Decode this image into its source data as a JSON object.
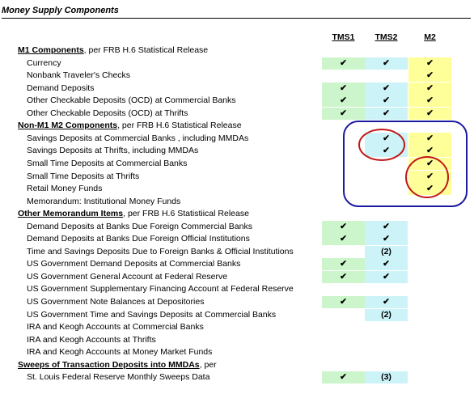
{
  "title": "Money Supply Components",
  "columns": [
    "TMS1",
    "TMS2",
    "M2"
  ],
  "rows": [
    {
      "section": "M1 Components",
      "note": ", per FRB H.6 Statistical Release"
    },
    {
      "label": "Currency",
      "cells": [
        "✔",
        "✔",
        "✔"
      ]
    },
    {
      "label": "Nonbank Traveler's Checks",
      "cells": [
        null,
        null,
        "✔"
      ]
    },
    {
      "label": "Demand Deposits",
      "cells": [
        "✔",
        "✔",
        "✔"
      ]
    },
    {
      "label": "Other Checkable Deposits (OCD) at Commercial Banks",
      "cells": [
        "✔",
        "✔",
        "✔"
      ]
    },
    {
      "label": "Other Checkable Deposits (OCD) at Thrifts",
      "cells": [
        "✔",
        "✔",
        "✔"
      ]
    },
    {
      "section": "Non-M1 M2 Components",
      "note": ", per FRB H.6 Statistical Release"
    },
    {
      "label": "Savings Deposits at Commercial Banks , including MMDAs",
      "cells": [
        null,
        "✔",
        "✔"
      ]
    },
    {
      "label": "Savings Deposits at Thrifts, including MMDAs",
      "cells": [
        null,
        "✔",
        "✔"
      ]
    },
    {
      "label": "Small Time Deposits at Commercial Banks",
      "cells": [
        null,
        null,
        "✔"
      ]
    },
    {
      "label": "Small Time Deposits at Thrifts",
      "cells": [
        null,
        null,
        "✔"
      ]
    },
    {
      "label": "Retail Money Funds",
      "cells": [
        null,
        null,
        "✔"
      ]
    },
    {
      "label": "Memorandum: Institutional Money Funds",
      "cells": [
        null,
        null,
        null
      ]
    },
    {
      "section": "Other Memorandum Items",
      "note": ", per FRB H.6 Statistiical Release"
    },
    {
      "label": "Demand Deposits at Banks Due Foreign Commercial Banks",
      "cells": [
        "✔",
        "✔",
        null
      ]
    },
    {
      "label": "Demand Deposits at Banks Due Foreign Official Institutions",
      "cells": [
        "✔",
        "✔",
        null
      ]
    },
    {
      "label": "Time and Savings Deposits Due to Foreign Banks & Official Institutions",
      "cells": [
        null,
        "(2)",
        null
      ]
    },
    {
      "label": "US Government Demand Deposits at Commercial Banks",
      "cells": [
        "✔",
        "✔",
        null
      ]
    },
    {
      "label": "US Government General Account at Federal Reserve",
      "cells": [
        "✔",
        "✔",
        null
      ]
    },
    {
      "label": "US Government Supplementary Financing Account at Federal Reserve",
      "cells": [
        null,
        null,
        null
      ]
    },
    {
      "label": "US Government Note Balances at Depositories",
      "cells": [
        "✔",
        "✔",
        null
      ]
    },
    {
      "label": "US Government Time and Savings Deposits at Commercial Banks",
      "cells": [
        null,
        "(2)",
        null
      ]
    },
    {
      "label": "IRA and Keogh Accounts at Commercial Banks",
      "cells": [
        null,
        null,
        null
      ]
    },
    {
      "label": "IRA and Keogh Accounts at Thrifts",
      "cells": [
        null,
        null,
        null
      ]
    },
    {
      "label": "IRA and Keogh Accounts at Money Market Funds",
      "cells": [
        null,
        null,
        null
      ]
    },
    {
      "section": "Sweeps of Transaction Deposits into MMDAs",
      "note": ", per"
    },
    {
      "label": "St. Louis Federal Reserve Monthly Sweeps Data",
      "cells": [
        "✔",
        "(3)",
        null
      ]
    }
  ]
}
